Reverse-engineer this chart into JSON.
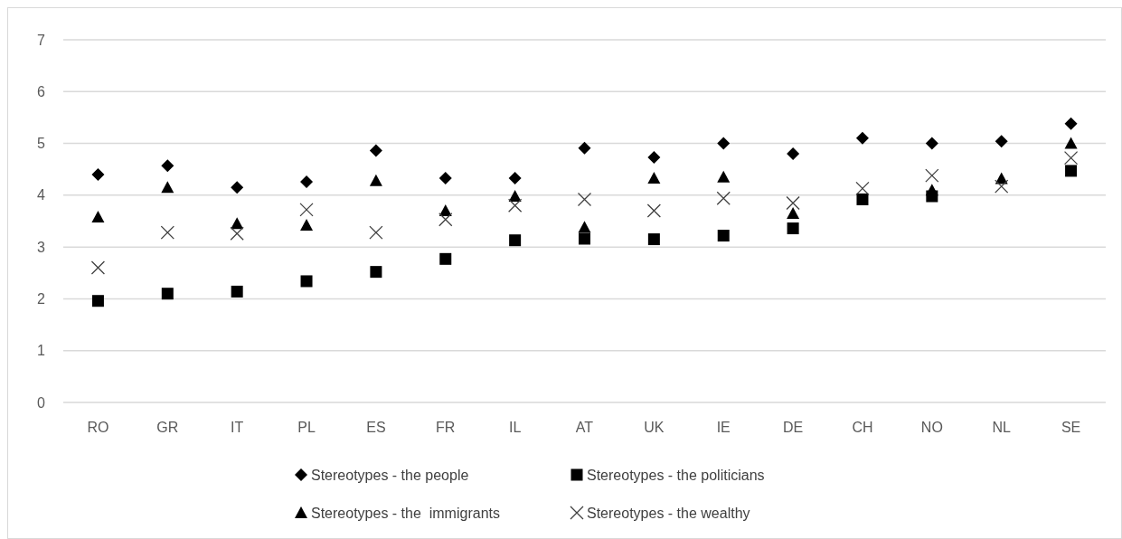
{
  "chart_data": {
    "type": "scatter",
    "categories": [
      "RO",
      "GR",
      "IT",
      "PL",
      "ES",
      "FR",
      "IL",
      "AT",
      "UK",
      "IE",
      "DE",
      "CH",
      "NO",
      "NL",
      "SE"
    ],
    "series": [
      {
        "name": "Stereotypes - the people",
        "color": "#000000",
        "marker": "diamond",
        "values": [
          4.4,
          4.57,
          4.15,
          4.26,
          4.86,
          4.33,
          4.33,
          4.91,
          4.73,
          5.0,
          4.8,
          5.1,
          5.0,
          5.04,
          5.38
        ]
      },
      {
        "name": "Stereotypes - the politicians",
        "color": "#000000",
        "marker": "square",
        "values": [
          1.96,
          2.1,
          2.14,
          2.34,
          2.52,
          2.77,
          3.13,
          3.16,
          3.15,
          3.22,
          3.36,
          3.92,
          3.98,
          null,
          4.47
        ]
      },
      {
        "name": "Stereotypes - the  immigrants",
        "color": "#000000",
        "marker": "triangle",
        "values": [
          3.58,
          4.15,
          3.45,
          3.42,
          4.28,
          3.7,
          3.98,
          3.38,
          4.33,
          4.35,
          3.65,
          null,
          4.1,
          4.32,
          5.0
        ]
      },
      {
        "name": "Stereotypes - the wealthy",
        "color": "#404040",
        "marker": "cross",
        "values": [
          2.6,
          3.28,
          3.26,
          3.72,
          3.28,
          3.53,
          3.8,
          3.92,
          3.7,
          3.94,
          3.85,
          4.13,
          4.38,
          4.17,
          4.72
        ]
      }
    ],
    "ylim": [
      0,
      7
    ],
    "yticks": [
      0,
      1,
      2,
      3,
      4,
      5,
      6,
      7
    ],
    "grid": "y",
    "legend": "bottom"
  }
}
